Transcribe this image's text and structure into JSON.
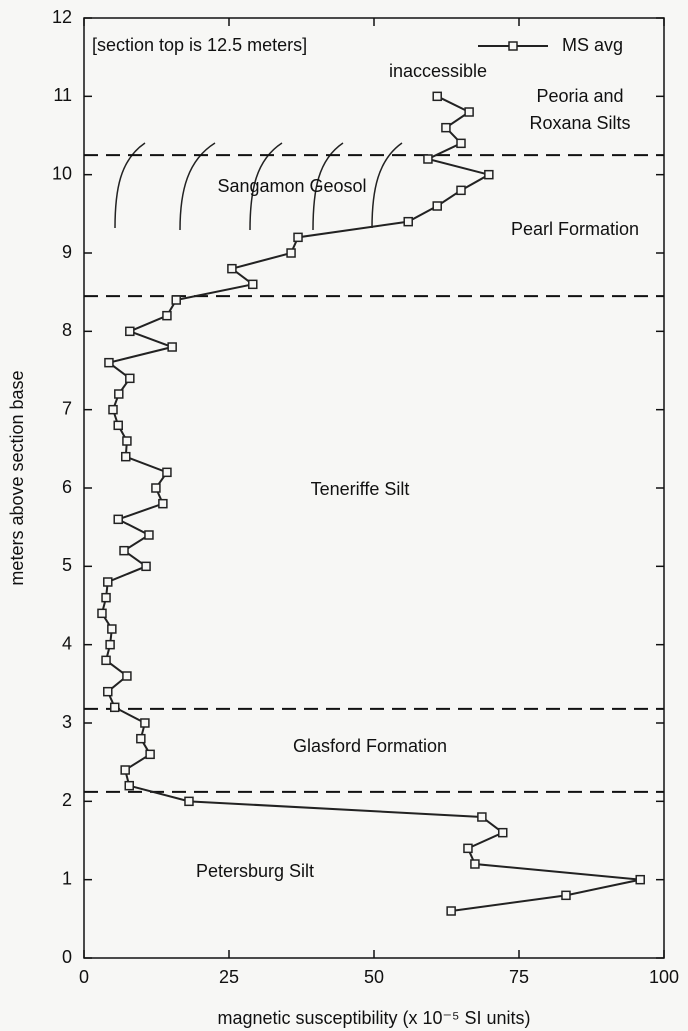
{
  "chart_data": {
    "type": "line",
    "xlabel": "magnetic susceptibility (x 10⁻⁵ SI units)",
    "ylabel": "meters above section base",
    "xlim": [
      0,
      100
    ],
    "xticks": [
      0,
      25,
      50,
      75,
      100
    ],
    "ylim": [
      0,
      12
    ],
    "yticks": [
      0,
      1,
      2,
      3,
      4,
      5,
      6,
      7,
      8,
      9,
      10,
      11,
      12
    ],
    "legend": "top-right",
    "series": [
      {
        "name": "MS avg",
        "color": "#222222",
        "x": [
          60.9,
          66.4,
          62.4,
          65.0,
          59.3,
          69.8,
          65.0,
          60.9,
          55.9,
          36.9,
          35.7,
          25.5,
          29.1,
          15.9,
          14.3,
          7.9,
          15.2,
          4.3,
          7.9,
          6.0,
          5.0,
          5.9,
          7.4,
          7.2,
          14.3,
          12.4,
          13.6,
          5.9,
          11.2,
          6.9,
          10.7,
          4.1,
          3.8,
          3.1,
          4.8,
          4.5,
          3.8,
          7.4,
          4.1,
          5.3,
          10.5,
          9.8,
          11.4,
          7.1,
          7.8,
          18.1,
          68.6,
          72.2,
          66.2,
          67.4,
          95.9,
          83.1,
          63.3
        ],
        "values": [
          11.0,
          10.8,
          10.6,
          10.4,
          10.2,
          10.0,
          9.8,
          9.6,
          9.4,
          9.2,
          9.0,
          8.8,
          8.6,
          8.4,
          8.2,
          8.0,
          7.8,
          7.6,
          7.4,
          7.2,
          7.0,
          6.8,
          6.6,
          6.4,
          6.2,
          6.0,
          5.8,
          5.6,
          5.4,
          5.2,
          5.0,
          4.8,
          4.6,
          4.4,
          4.2,
          4.0,
          3.8,
          3.6,
          3.4,
          3.2,
          3.0,
          2.8,
          2.6,
          2.4,
          2.2,
          2.0,
          1.8,
          1.6,
          1.4,
          1.2,
          1.0,
          0.8,
          0.6
        ]
      }
    ],
    "boundaries": [
      10.25,
      8.45,
      3.18,
      2.12
    ],
    "annotations": [
      "[section top is 12.5 meters]",
      "inaccessible",
      "Peoria and",
      "Roxana Silts",
      "Sangamon Geosol",
      "Pearl Formation",
      "Teneriffe Silt",
      "Glasford Formation",
      "Petersburg Silt"
    ]
  }
}
